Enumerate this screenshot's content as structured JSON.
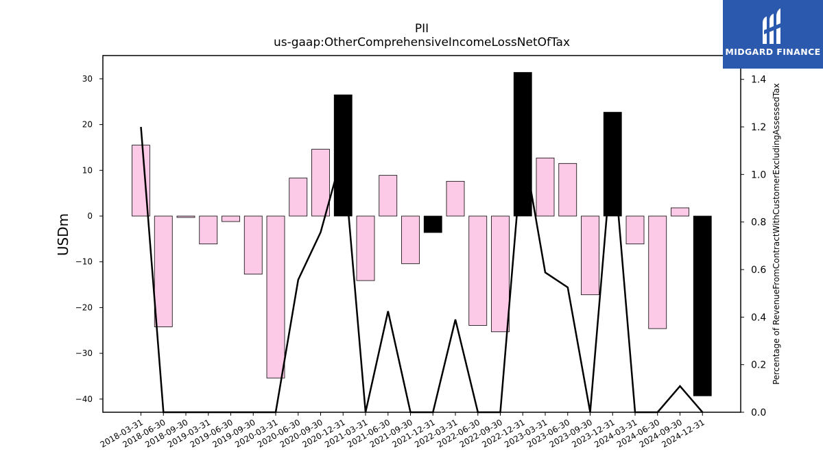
{
  "chart_data": {
    "type": "bar",
    "title": "PII",
    "subtitle": "us-gaap:OtherComprehensiveIncomeLossNetOfTax",
    "ylabel": "USDm",
    "y2label": "Percentage of RevenueFromContractWithCustomerExcludingAssessedTax",
    "ylim": [
      -42.5,
      35
    ],
    "y2lim": [
      0.0,
      1.5
    ],
    "yticks": [
      30,
      20,
      10,
      0,
      -10,
      -20,
      -30,
      -40
    ],
    "y2ticks": [
      "1.4",
      "1.2",
      "1.0",
      "0.8",
      "0.6",
      "0.4",
      "0.2",
      "0.0"
    ],
    "categories": [
      "2018-03-31",
      "2018-06-30",
      "2018-09-30",
      "2019-03-31",
      "2019-06-30",
      "2019-09-30",
      "2020-03-31",
      "2020-06-30",
      "2020-09-30",
      "2020-12-31",
      "2021-03-31",
      "2021-06-30",
      "2021-09-30",
      "2021-12-31",
      "2022-03-31",
      "2022-06-30",
      "2022-09-30",
      "2022-12-31",
      "2023-03-31",
      "2023-06-30",
      "2023-09-30",
      "2023-12-31",
      "2024-03-31",
      "2024-06-30",
      "2024-09-30",
      "2024-12-31"
    ],
    "series": [
      {
        "values": [
          15.5,
          -24.2,
          -0.3,
          -6.1,
          -1.2,
          -12.7,
          -35.4,
          8.3,
          14.6,
          26.5,
          -14.1,
          8.9,
          -10.4,
          -3.6,
          7.6,
          -23.9,
          -25.3,
          31.4,
          12.7,
          11.5,
          -17.2,
          22.7,
          -6.1,
          -24.6,
          1.8,
          -39.3
        ],
        "highlight": [
          false,
          false,
          false,
          false,
          false,
          false,
          false,
          false,
          false,
          true,
          false,
          false,
          false,
          true,
          false,
          false,
          false,
          true,
          false,
          false,
          false,
          true,
          false,
          false,
          false,
          true
        ]
      },
      {
        "axis": "right",
        "values": [
          1.2,
          0.0,
          0.0,
          0.0,
          0.0,
          0.0,
          0.0,
          0.557,
          0.757,
          1.1,
          0.0,
          0.425,
          0.0,
          0.0,
          0.39,
          0.0,
          0.0,
          1.13,
          0.588,
          0.525,
          0.0,
          1.12,
          0.0,
          0.0,
          0.11,
          0.0
        ]
      }
    ],
    "colors": {
      "bar": "#fccae6",
      "highlight": "#000000",
      "line": "#000000"
    },
    "grid": false
  },
  "logo": {
    "text": "MIDGARD FINANCE",
    "bg": "#2b59ad"
  }
}
